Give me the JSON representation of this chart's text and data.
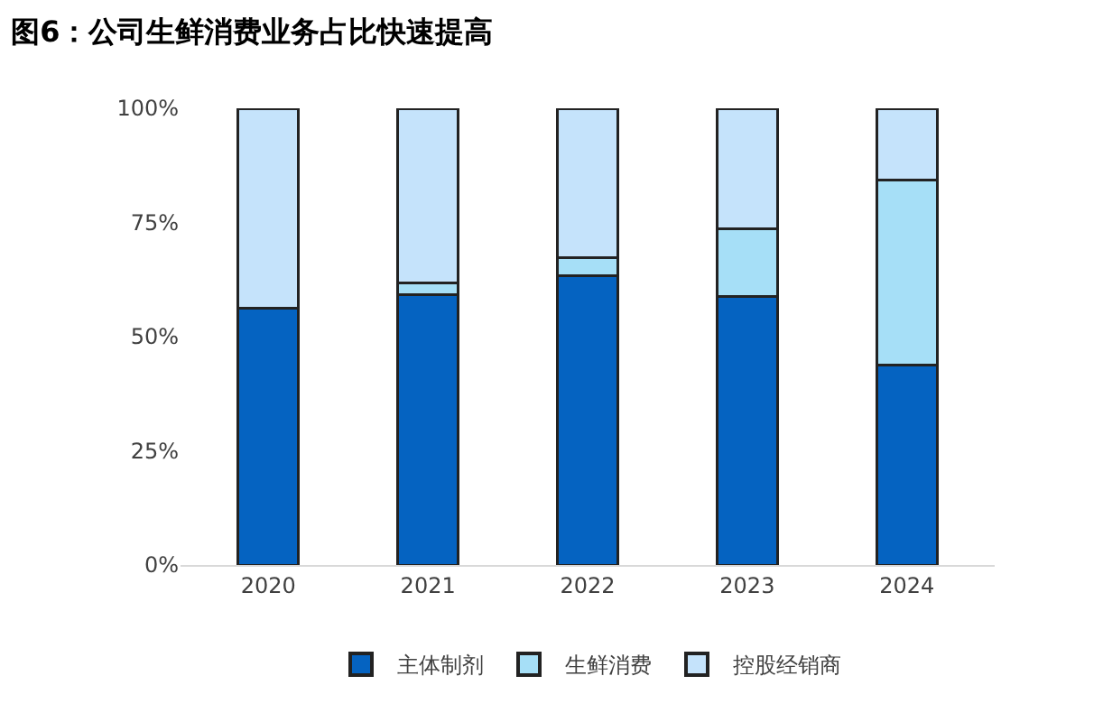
{
  "chart_data": {
    "type": "bar",
    "title": "图6：公司生鲜消费业务占比快速提高",
    "stacked": true,
    "categories": [
      "2020",
      "2021",
      "2022",
      "2023",
      "2024"
    ],
    "series": [
      {
        "name": "主体制剂",
        "color": "#0563c1",
        "values": [
          56.2,
          59.2,
          63.4,
          58.7,
          43.7
        ]
      },
      {
        "name": "生鲜消费",
        "color": "#a6dff7",
        "values": [
          0,
          2.5,
          3.9,
          14.9,
          40.5
        ]
      },
      {
        "name": "控股经销商",
        "color": "#c5e3fb",
        "values": [
          43.8,
          38.3,
          32.7,
          26.4,
          15.8
        ]
      }
    ],
    "ylim": [
      0,
      100
    ],
    "yticks": [
      {
        "value": 0,
        "label": "0%"
      },
      {
        "value": 25,
        "label": "25%"
      },
      {
        "value": 50,
        "label": "50%"
      },
      {
        "value": 75,
        "label": "75%"
      },
      {
        "value": 100,
        "label": "100%"
      }
    ],
    "legend": "bottom"
  }
}
